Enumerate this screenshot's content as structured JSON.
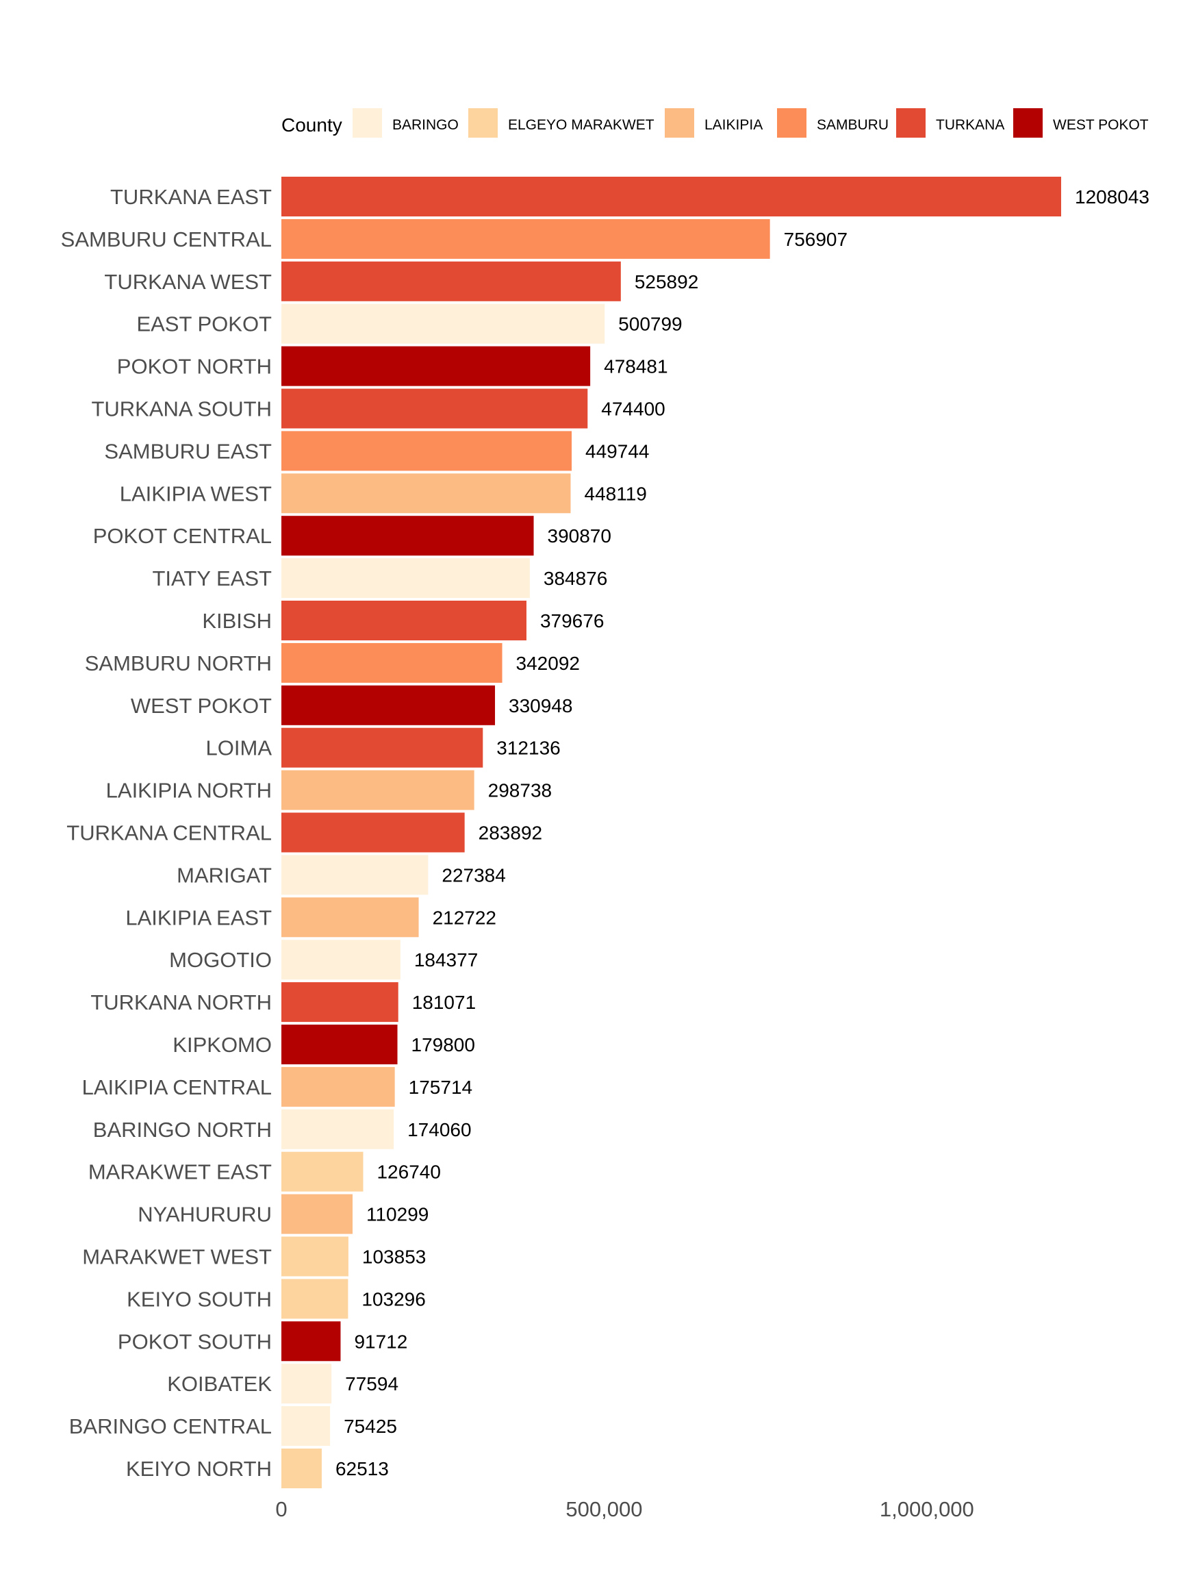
{
  "chart_data": {
    "type": "bar",
    "orientation": "horizontal",
    "title": "",
    "xlabel": "",
    "ylabel": "",
    "xlim": [
      0,
      1300000
    ],
    "x_ticks": [
      0,
      500000,
      1000000
    ],
    "x_tick_labels": [
      "0",
      "500,000",
      "1,000,000"
    ],
    "grid": false,
    "legend": {
      "title": "County",
      "placement": "top",
      "entries": [
        {
          "name": "BARINGO",
          "color": "#FEF0D9"
        },
        {
          "name": "ELGEYO MARAKWET",
          "color": "#FDD49E"
        },
        {
          "name": "LAIKIPIA",
          "color": "#FDBB84"
        },
        {
          "name": "SAMBURU",
          "color": "#FC8D59"
        },
        {
          "name": "TURKANA",
          "color": "#E34A33"
        },
        {
          "name": "WEST POKOT",
          "color": "#B30000"
        }
      ]
    },
    "bars": [
      {
        "category": "TURKANA EAST",
        "value": 1208043,
        "county": "TURKANA"
      },
      {
        "category": "SAMBURU CENTRAL",
        "value": 756907,
        "county": "SAMBURU"
      },
      {
        "category": "TURKANA WEST",
        "value": 525892,
        "county": "TURKANA"
      },
      {
        "category": "EAST POKOT",
        "value": 500799,
        "county": "BARINGO"
      },
      {
        "category": "POKOT NORTH",
        "value": 478481,
        "county": "WEST POKOT"
      },
      {
        "category": "TURKANA SOUTH",
        "value": 474400,
        "county": "TURKANA"
      },
      {
        "category": "SAMBURU EAST",
        "value": 449744,
        "county": "SAMBURU"
      },
      {
        "category": "LAIKIPIA WEST",
        "value": 448119,
        "county": "LAIKIPIA"
      },
      {
        "category": "POKOT CENTRAL",
        "value": 390870,
        "county": "WEST POKOT"
      },
      {
        "category": "TIATY EAST",
        "value": 384876,
        "county": "BARINGO"
      },
      {
        "category": "KIBISH",
        "value": 379676,
        "county": "TURKANA"
      },
      {
        "category": "SAMBURU NORTH",
        "value": 342092,
        "county": "SAMBURU"
      },
      {
        "category": "WEST POKOT",
        "value": 330948,
        "county": "WEST POKOT"
      },
      {
        "category": "LOIMA",
        "value": 312136,
        "county": "TURKANA"
      },
      {
        "category": "LAIKIPIA NORTH",
        "value": 298738,
        "county": "LAIKIPIA"
      },
      {
        "category": "TURKANA CENTRAL",
        "value": 283892,
        "county": "TURKANA"
      },
      {
        "category": "MARIGAT",
        "value": 227384,
        "county": "BARINGO"
      },
      {
        "category": "LAIKIPIA EAST",
        "value": 212722,
        "county": "LAIKIPIA"
      },
      {
        "category": "MOGOTIO",
        "value": 184377,
        "county": "BARINGO"
      },
      {
        "category": "TURKANA NORTH",
        "value": 181071,
        "county": "TURKANA"
      },
      {
        "category": "KIPKOMO",
        "value": 179800,
        "county": "WEST POKOT"
      },
      {
        "category": "LAIKIPIA CENTRAL",
        "value": 175714,
        "county": "LAIKIPIA"
      },
      {
        "category": "BARINGO NORTH",
        "value": 174060,
        "county": "BARINGO"
      },
      {
        "category": "MARAKWET EAST",
        "value": 126740,
        "county": "ELGEYO MARAKWET"
      },
      {
        "category": "NYAHURURU",
        "value": 110299,
        "county": "LAIKIPIA"
      },
      {
        "category": "MARAKWET WEST",
        "value": 103853,
        "county": "ELGEYO MARAKWET"
      },
      {
        "category": "KEIYO SOUTH",
        "value": 103296,
        "county": "ELGEYO MARAKWET"
      },
      {
        "category": "POKOT SOUTH",
        "value": 91712,
        "county": "WEST POKOT"
      },
      {
        "category": "KOIBATEK",
        "value": 77594,
        "county": "BARINGO"
      },
      {
        "category": "BARINGO CENTRAL",
        "value": 75425,
        "county": "BARINGO"
      },
      {
        "category": "KEIYO NORTH",
        "value": 62513,
        "county": "ELGEYO MARAKWET"
      }
    ]
  }
}
